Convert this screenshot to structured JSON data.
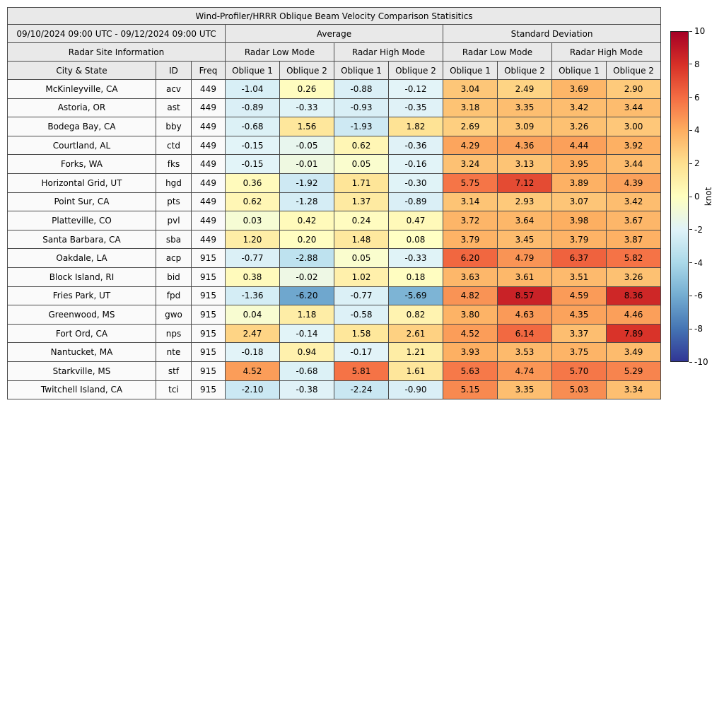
{
  "chart_data": {
    "type": "heatmap",
    "title": "Wind-Profiler/HRRR Oblique Beam Velocity Comparison Statisitics",
    "date_range": "09/10/2024 09:00 UTC - 09/12/2024 09:00 UTC",
    "group_headers": {
      "average": "Average",
      "std": "Standard Deviation"
    },
    "site_info_header": "Radar Site Information",
    "mode_headers": [
      "Radar Low Mode",
      "Radar High Mode",
      "Radar Low Mode",
      "Radar High Mode"
    ],
    "columns": [
      "City & State",
      "ID",
      "Freq",
      "Oblique 1",
      "Oblique 2",
      "Oblique 1",
      "Oblique 2",
      "Oblique 1",
      "Oblique 2",
      "Oblique 1",
      "Oblique 2"
    ],
    "rows": [
      {
        "city": "McKinleyville, CA",
        "id": "acv",
        "freq": "449",
        "values": [
          -1.04,
          0.26,
          -0.88,
          -0.12,
          3.04,
          2.49,
          3.69,
          2.9
        ]
      },
      {
        "city": "Astoria, OR",
        "id": "ast",
        "freq": "449",
        "values": [
          -0.89,
          -0.33,
          -0.93,
          -0.35,
          3.18,
          3.35,
          3.42,
          3.44
        ]
      },
      {
        "city": "Bodega Bay, CA",
        "id": "bby",
        "freq": "449",
        "values": [
          -0.68,
          1.56,
          -1.93,
          1.82,
          2.69,
          3.09,
          3.26,
          3.0
        ]
      },
      {
        "city": "Courtland, AL",
        "id": "ctd",
        "freq": "449",
        "values": [
          -0.15,
          -0.05,
          0.62,
          -0.36,
          4.29,
          4.36,
          4.44,
          3.92
        ]
      },
      {
        "city": "Forks, WA",
        "id": "fks",
        "freq": "449",
        "values": [
          -0.15,
          -0.01,
          0.05,
          -0.16,
          3.24,
          3.13,
          3.95,
          3.44
        ]
      },
      {
        "city": "Horizontal Grid, UT",
        "id": "hgd",
        "freq": "449",
        "values": [
          0.36,
          -1.92,
          1.71,
          -0.3,
          5.75,
          7.12,
          3.89,
          4.39
        ]
      },
      {
        "city": "Point Sur, CA",
        "id": "pts",
        "freq": "449",
        "values": [
          0.62,
          -1.28,
          1.37,
          -0.89,
          3.14,
          2.93,
          3.07,
          3.42
        ]
      },
      {
        "city": "Platteville, CO",
        "id": "pvl",
        "freq": "449",
        "values": [
          0.03,
          0.42,
          0.24,
          0.47,
          3.72,
          3.64,
          3.98,
          3.67
        ]
      },
      {
        "city": "Santa Barbara, CA",
        "id": "sba",
        "freq": "449",
        "values": [
          1.2,
          0.2,
          1.48,
          0.08,
          3.79,
          3.45,
          3.79,
          3.87
        ]
      },
      {
        "city": "Oakdale, LA",
        "id": "acp",
        "freq": "915",
        "values": [
          -0.77,
          -2.88,
          0.05,
          -0.33,
          6.2,
          4.79,
          6.37,
          5.82
        ]
      },
      {
        "city": "Block Island, RI",
        "id": "bid",
        "freq": "915",
        "values": [
          0.38,
          -0.02,
          1.02,
          0.18,
          3.63,
          3.61,
          3.51,
          3.26
        ]
      },
      {
        "city": "Fries Park, UT",
        "id": "fpd",
        "freq": "915",
        "values": [
          -1.36,
          -6.2,
          -0.77,
          -5.69,
          4.82,
          8.57,
          4.59,
          8.36
        ]
      },
      {
        "city": "Greenwood, MS",
        "id": "gwo",
        "freq": "915",
        "values": [
          0.04,
          1.18,
          -0.58,
          0.82,
          3.8,
          4.63,
          4.35,
          4.46
        ]
      },
      {
        "city": "Fort Ord, CA",
        "id": "nps",
        "freq": "915",
        "values": [
          2.47,
          -0.14,
          1.58,
          2.61,
          4.52,
          6.14,
          3.37,
          7.89
        ]
      },
      {
        "city": "Nantucket, MA",
        "id": "nte",
        "freq": "915",
        "values": [
          -0.18,
          0.94,
          -0.17,
          1.21,
          3.93,
          3.53,
          3.75,
          3.49
        ]
      },
      {
        "city": "Starkville, MS",
        "id": "stf",
        "freq": "915",
        "values": [
          4.52,
          -0.68,
          5.81,
          1.61,
          5.63,
          4.74,
          5.7,
          5.29
        ]
      },
      {
        "city": "Twitchell Island, CA",
        "id": "tci",
        "freq": "915",
        "values": [
          -2.1,
          -0.38,
          -2.24,
          -0.9,
          5.15,
          3.35,
          5.03,
          3.34
        ]
      }
    ],
    "value_range": [
      -10,
      10
    ],
    "colorbar": {
      "label": "knot",
      "ticks": [
        10,
        8,
        6,
        4,
        2,
        0,
        -2,
        -4,
        -6,
        -8,
        -10
      ],
      "min": -10,
      "max": 10,
      "colors_bottom_to_top": [
        "#313695",
        "#4575b4",
        "#74add1",
        "#abd9e9",
        "#e0f3f8",
        "#ffffbf",
        "#fee090",
        "#fdae61",
        "#f46d43",
        "#d73027",
        "#a50026"
      ]
    },
    "cell_color_stops": [
      [
        -10,
        "#313695"
      ],
      [
        -8,
        "#4575b4"
      ],
      [
        -6,
        "#74add1"
      ],
      [
        -4,
        "#abd9e9"
      ],
      [
        -2,
        "#cde9f3"
      ],
      [
        -0.08,
        "#e3f4f8"
      ],
      [
        0.08,
        "#ffffc4"
      ],
      [
        2,
        "#fee090"
      ],
      [
        4,
        "#fdae61"
      ],
      [
        6,
        "#f46d43"
      ],
      [
        8,
        "#d73027"
      ],
      [
        10,
        "#a50026"
      ]
    ]
  }
}
